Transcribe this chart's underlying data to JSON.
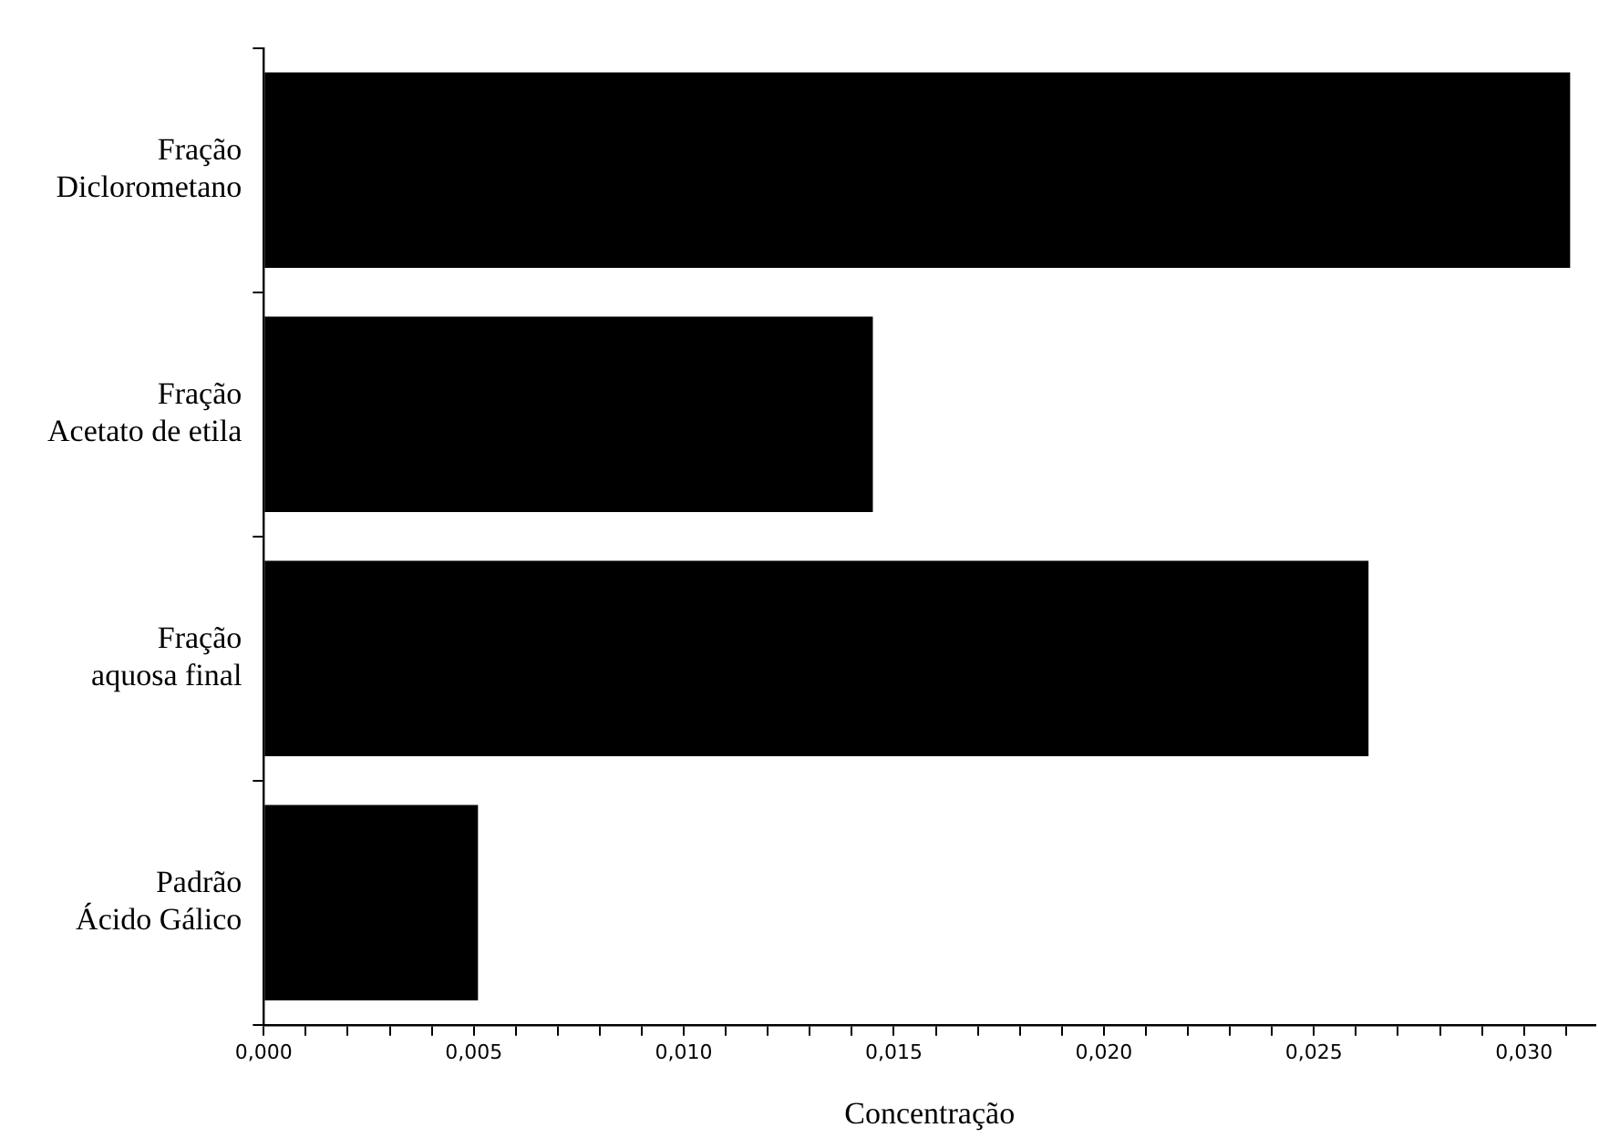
{
  "chart_data": {
    "type": "bar",
    "orientation": "horizontal",
    "xlabel": "Concentração",
    "categories": [
      "Fração\nDiclorometano",
      "Fração\nAcetato de etila",
      "Fração\naquosa final",
      "Padrão\nÁcido Gálico"
    ],
    "values": [
      0.0311,
      0.0145,
      0.0263,
      0.0051
    ],
    "color": "#000000",
    "xlim": [
      0,
      0.0317
    ],
    "xticks": [
      {
        "value": 0,
        "label": "0,000"
      },
      {
        "value": 0.001,
        "label": null
      },
      {
        "value": 0.002,
        "label": null
      },
      {
        "value": 0.003,
        "label": null
      },
      {
        "value": 0.004,
        "label": null
      },
      {
        "value": 0.005,
        "label": "0,005"
      },
      {
        "value": 0.006,
        "label": null
      },
      {
        "value": 0.007,
        "label": null
      },
      {
        "value": 0.008,
        "label": null
      },
      {
        "value": 0.009,
        "label": null
      },
      {
        "value": 0.01,
        "label": "0,010"
      },
      {
        "value": 0.011,
        "label": null
      },
      {
        "value": 0.012,
        "label": null
      },
      {
        "value": 0.013,
        "label": null
      },
      {
        "value": 0.014,
        "label": null
      },
      {
        "value": 0.015,
        "label": "0,015"
      },
      {
        "value": 0.016,
        "label": null
      },
      {
        "value": 0.017,
        "label": null
      },
      {
        "value": 0.018,
        "label": null
      },
      {
        "value": 0.019,
        "label": null
      },
      {
        "value": 0.02,
        "label": "0,020"
      },
      {
        "value": 0.021,
        "label": null
      },
      {
        "value": 0.022,
        "label": null
      },
      {
        "value": 0.023,
        "label": null
      },
      {
        "value": 0.024,
        "label": null
      },
      {
        "value": 0.025,
        "label": "0,025"
      },
      {
        "value": 0.026,
        "label": null
      },
      {
        "value": 0.027,
        "label": null
      },
      {
        "value": 0.028,
        "label": null
      },
      {
        "value": 0.029,
        "label": null
      },
      {
        "value": 0.03,
        "label": "0,030"
      },
      {
        "value": 0.031,
        "label": null
      }
    ],
    "grid": false,
    "legend": false
  }
}
